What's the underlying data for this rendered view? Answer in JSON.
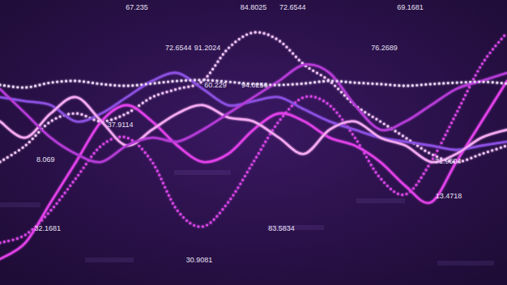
{
  "chart_data": {
    "type": "line",
    "tick_labels": false,
    "grid": false,
    "xlim": [
      0,
      100
    ],
    "ylim": [
      0,
      100
    ],
    "x": [
      0,
      5,
      10,
      15,
      20,
      25,
      30,
      35,
      40,
      45,
      50,
      55,
      60,
      65,
      70,
      75,
      80,
      85,
      90,
      95,
      100
    ],
    "series": [
      {
        "color": "#f2c4f7",
        "line_style": "dotted",
        "marker": "dot",
        "values": [
          43.2,
          48.9,
          57.4,
          60.2,
          57.4,
          60.2,
          65.9,
          68.8,
          71.6,
          83.0,
          88.6,
          85.8,
          77.3,
          71.6,
          63.1,
          57.4,
          51.7,
          46.0,
          43.2,
          46.0,
          48.9
        ]
      },
      {
        "color": "#d844e6",
        "line_style": "dotted",
        "marker": "dot",
        "values": [
          14.8,
          17.6,
          26.1,
          37.5,
          48.9,
          51.7,
          43.2,
          26.1,
          20.5,
          29.0,
          43.2,
          57.4,
          65.9,
          63.1,
          51.7,
          37.5,
          31.8,
          43.2,
          60.2,
          77.3,
          88.6
        ]
      },
      {
        "color": "#e040e8",
        "line_style": "solid",
        "values": [
          9.1,
          14.8,
          29.0,
          43.2,
          57.4,
          63.1,
          57.4,
          48.9,
          43.2,
          46.0,
          54.5,
          60.2,
          57.4,
          51.7,
          48.9,
          43.2,
          34.7,
          29.0,
          43.2,
          57.4,
          71.6
        ]
      },
      {
        "color": "#8b4fe0",
        "line_style": "solid",
        "values": [
          65.9,
          64.5,
          63.1,
          57.4,
          60.2,
          65.9,
          71.6,
          74.4,
          68.8,
          63.1,
          64.5,
          65.9,
          61.6,
          57.4,
          54.5,
          51.7,
          50.3,
          48.9,
          47.4,
          48.9,
          50.3
        ]
      },
      {
        "color": "#f3a8f0",
        "line_style": "solid",
        "values": [
          57.4,
          51.7,
          60.2,
          65.9,
          57.4,
          48.9,
          54.5,
          60.2,
          63.1,
          58.8,
          57.4,
          51.7,
          46.0,
          54.5,
          57.4,
          51.7,
          48.9,
          43.2,
          46.0,
          51.7,
          54.5
        ]
      },
      {
        "color": "#b43ad6",
        "line_style": "solid",
        "values": [
          68.8,
          60.2,
          51.7,
          46.0,
          43.2,
          48.9,
          51.7,
          50.3,
          54.5,
          60.2,
          65.9,
          71.6,
          77.3,
          74.4,
          63.1,
          54.5,
          57.4,
          63.1,
          68.8,
          71.6,
          74.4
        ]
      },
      {
        "color": "#ead6f5",
        "line_style": "dotted",
        "marker": "dot",
        "values": [
          70.2,
          69.3,
          71.0,
          71.6,
          70.5,
          69.9,
          70.7,
          71.6,
          71.9,
          71.3,
          70.5,
          70.2,
          70.7,
          71.6,
          71.0,
          70.5,
          69.9,
          70.5,
          71.0,
          71.3,
          70.7
        ]
      }
    ],
    "annotations": [
      {
        "text": "67.235",
        "x": 24.8,
        "y": 97.2
      },
      {
        "text": "84.8025",
        "x": 47.4,
        "y": 97.2
      },
      {
        "text": "72.6544",
        "x": 55.1,
        "y": 97.2
      },
      {
        "text": "69.1681",
        "x": 78.3,
        "y": 97.2
      },
      {
        "text": "72.6544",
        "x": 32.6,
        "y": 83.0
      },
      {
        "text": "91.2024",
        "x": 38.3,
        "y": 83.0
      },
      {
        "text": "76.2689",
        "x": 73.2,
        "y": 83.0
      },
      {
        "text": "60.229",
        "x": 40.3,
        "y": 69.9
      },
      {
        "text": "94.0256",
        "x": 47.6,
        "y": 69.9
      },
      {
        "text": "37.9114",
        "x": 21.2,
        "y": 56.0
      },
      {
        "text": "8.069",
        "x": 7.2,
        "y": 43.8
      },
      {
        "text": "71.9504",
        "x": 85.8,
        "y": 43.2
      },
      {
        "text": "13.4718",
        "x": 85.9,
        "y": 31.0
      },
      {
        "text": "32.1681",
        "x": 6.8,
        "y": 19.6
      },
      {
        "text": "83.5834",
        "x": 52.9,
        "y": 19.6
      },
      {
        "text": "30.9081",
        "x": 36.7,
        "y": 8.5
      }
    ]
  }
}
